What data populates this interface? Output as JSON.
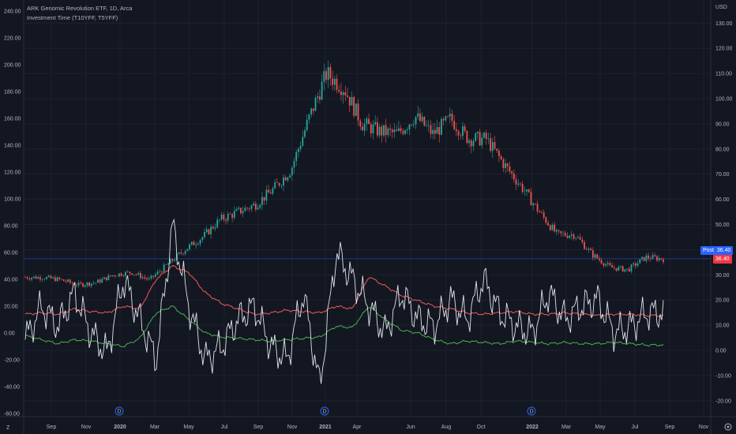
{
  "header": {
    "symbol_line": "ARK Genomic Revolution ETF, 1D, Arca",
    "indicator_line": "Investment Time (T10YFF, T5YFF)"
  },
  "left_axis": {
    "labels": [
      "240.00",
      "220.00",
      "200.00",
      "180.00",
      "160.00",
      "140.00",
      "120.00",
      "100.00",
      "80.00",
      "60.00",
      "40.00",
      "20.00",
      "0.00",
      "-20.00",
      "-40.00",
      "-60.00"
    ]
  },
  "right_axis": {
    "currency": "USD",
    "labels": [
      "130.00",
      "120.00",
      "110.00",
      "100.00",
      "90.00",
      "80.00",
      "70.00",
      "60.00",
      "50.00",
      "40.00",
      "30.00",
      "20.00",
      "10.00",
      "0.00",
      "-10.00",
      "-20.00"
    ]
  },
  "time_axis": {
    "labels": [
      "Sep",
      "Nov",
      "2020",
      "Mar",
      "May",
      "Jul",
      "Sep",
      "Nov",
      "2021",
      "Apr",
      "Jun",
      "Aug",
      "Oct",
      "2022",
      "Mar",
      "May",
      "Jul",
      "Sep",
      "Nov"
    ]
  },
  "price_badges": {
    "post_label": "Post",
    "post_value": "36.40",
    "last_value": "36.40"
  },
  "dividend_marker": "D",
  "colors": {
    "background": "#131722",
    "up": "#26a69a",
    "down": "#ef5350",
    "oscillator": "#e0e3eb",
    "upper_band": "#f05a5a",
    "lower_band": "#4caf50",
    "post_badge": "#2962ff",
    "last_badge": "#f23645"
  },
  "chart_data": {
    "type": "candlestick",
    "price_series": {
      "name": "ARKG",
      "dates": [
        "2019-08",
        "2019-09",
        "2019-10",
        "2019-11",
        "2019-12",
        "2020-01",
        "2020-02",
        "2020-03",
        "2020-04",
        "2020-05",
        "2020-06",
        "2020-07",
        "2020-08",
        "2020-09",
        "2020-10",
        "2020-11",
        "2020-12",
        "2021-01",
        "2021-02",
        "2021-03",
        "2021-04",
        "2021-05",
        "2021-06",
        "2021-07",
        "2021-08",
        "2021-09",
        "2021-10",
        "2021-11",
        "2021-12",
        "2022-01",
        "2022-02",
        "2022-03",
        "2022-04",
        "2022-05",
        "2022-06",
        "2022-07",
        "2022-08"
      ],
      "close": [
        29,
        29,
        28,
        26,
        27,
        30,
        31,
        28,
        34,
        40,
        45,
        52,
        55,
        58,
        64,
        72,
        92,
        110,
        104,
        90,
        87,
        86,
        93,
        86,
        92,
        84,
        84,
        74,
        65,
        55,
        46,
        46,
        38,
        33,
        32,
        37,
        36.4
      ],
      "ylim": [
        -20,
        130
      ]
    },
    "oscillator": {
      "name": "Investment Time (T10YFF, T5YFF)",
      "x_range": [
        "2019-08",
        "2022-08"
      ],
      "ylim": [
        -60,
        240
      ],
      "osc": [
        -5,
        20,
        5,
        30,
        0,
        -15,
        40,
        10,
        -20,
        80,
        20,
        -20,
        -10,
        10,
        20,
        -10,
        -20,
        30,
        -40,
        60,
        40,
        20,
        0,
        30,
        10,
        5,
        25,
        10,
        40,
        15,
        5,
        0,
        30,
        10,
        20,
        25,
        0,
        5,
        15,
        15
      ],
      "upper": [
        14,
        15,
        14,
        18,
        16,
        15,
        20,
        18,
        40,
        50,
        45,
        30,
        22,
        18,
        14,
        15,
        17,
        16,
        15,
        20,
        18,
        42,
        35,
        28,
        24,
        20,
        18,
        15,
        14,
        15,
        16,
        14,
        14,
        15,
        14,
        13,
        14,
        14,
        13,
        13
      ],
      "lower": [
        -2,
        -5,
        -8,
        -5,
        -6,
        -8,
        -10,
        -4,
        15,
        20,
        10,
        0,
        -3,
        -4,
        -5,
        -6,
        -5,
        -4,
        -3,
        5,
        4,
        20,
        10,
        2,
        0,
        -5,
        -8,
        -6,
        -7,
        -8,
        -6,
        -7,
        -8,
        -7,
        -8,
        -8,
        -7,
        -8,
        -9,
        -9
      ]
    },
    "dividends": [
      "2019-12",
      "2020-12",
      "2021-12"
    ]
  }
}
